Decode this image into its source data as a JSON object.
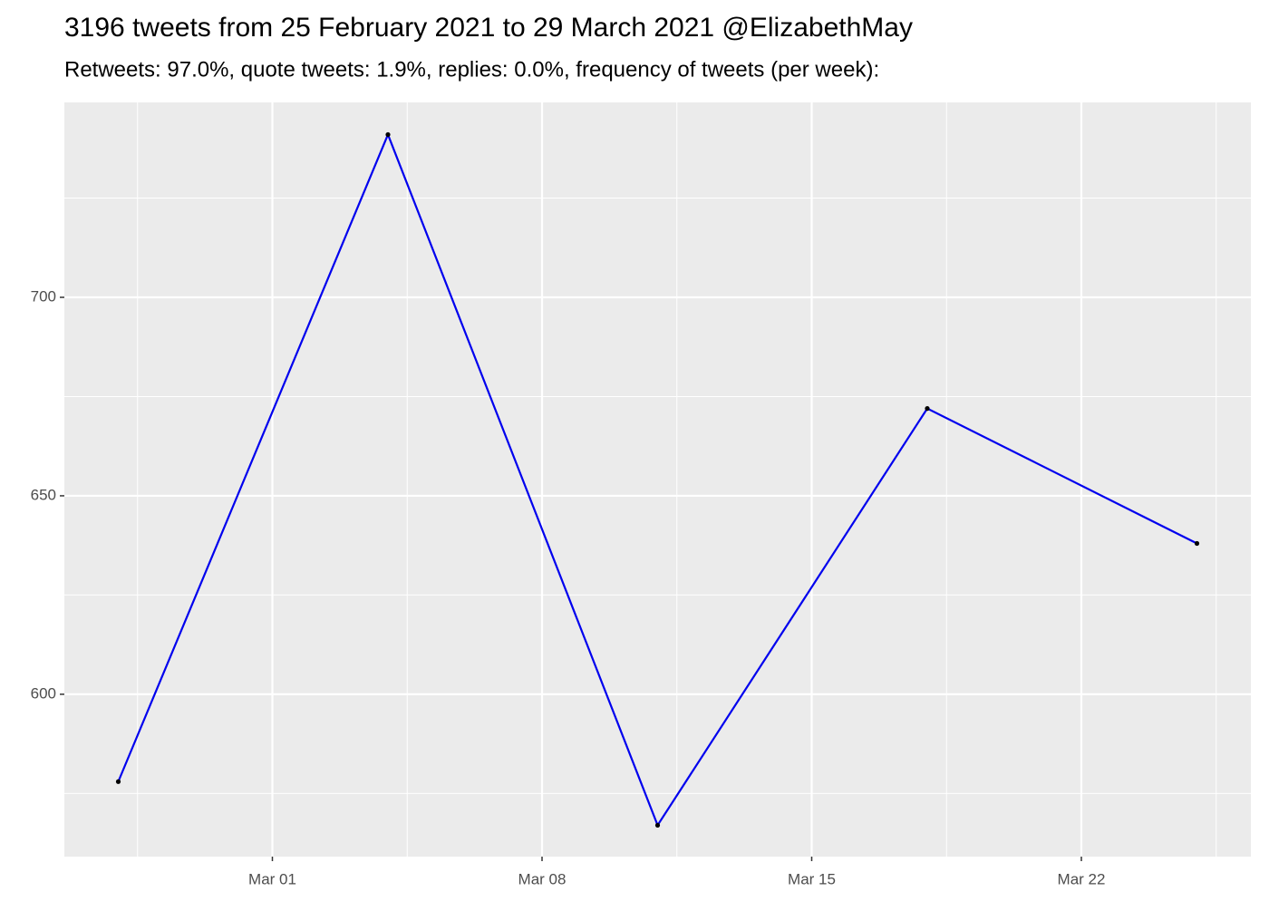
{
  "chart_data": {
    "type": "line",
    "title": "3196 tweets from 25 February 2021 to 29 March 2021 @ElizabethMay",
    "subtitle": "Retweets: 97.0%, quote tweets: 1.9%, replies: 0.0%, frequency of tweets (per week):",
    "x": [
      "2021-02-25",
      "2021-03-04",
      "2021-03-11",
      "2021-03-18",
      "2021-03-25"
    ],
    "series": [
      {
        "color": "#0000ee",
        "point_color": "#000000",
        "values": [
          578,
          741,
          567,
          672,
          638
        ]
      }
    ],
    "xlim": [
      "2021-02-23T14:24Z",
      "2021-03-26T09:36Z"
    ],
    "xticks": [
      {
        "value": "2021-03-01",
        "label": "Mar 01"
      },
      {
        "value": "2021-03-08",
        "label": "Mar 08"
      },
      {
        "value": "2021-03-15",
        "label": "Mar 15"
      },
      {
        "value": "2021-03-22",
        "label": "Mar 22"
      }
    ],
    "ylim": [
      559.1,
      749.1
    ],
    "yticks": [
      600,
      650,
      700
    ],
    "grid": true
  }
}
